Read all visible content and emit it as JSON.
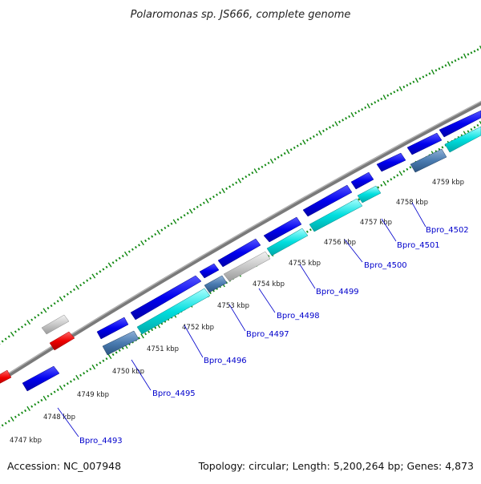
{
  "title": "Polaromonas sp. JS666, complete genome",
  "footer": {
    "accession": "Accession: NC_007948",
    "summary": "Topology: circular; Length: 5,200,264 bp; Genes: 4,873"
  },
  "colors": {
    "cds_blue": "#0000ee",
    "cds_cyan": "#00e0e0",
    "cds_steel": "#4a7bb0",
    "cds_gray": "#c8c8c8",
    "cds_red": "#ee0000",
    "tick_green": "#118811",
    "backbone": "#8a8a8a",
    "label_blue": "#0000cc"
  },
  "kbp_ticks": [
    "4747 kbp",
    "4748 kbp",
    "4749 kbp",
    "4750 kbp",
    "4751 kbp",
    "4752 kbp",
    "4753 kbp",
    "4754 kbp",
    "4755 kbp",
    "4756 kbp",
    "4757 kbp",
    "4758 kbp",
    "4759 kbp"
  ],
  "gene_labels": [
    "Bpro_4493",
    "Bpro_4495",
    "Bpro_4496",
    "Bpro_4497",
    "Bpro_4498",
    "Bpro_4499",
    "Bpro_4500",
    "Bpro_4501",
    "Bpro_4502"
  ]
}
